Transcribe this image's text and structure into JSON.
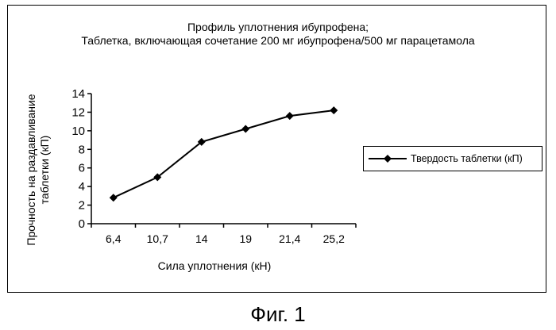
{
  "chart_data": {
    "type": "line",
    "title_lines": [
      "Профиль уплотнения ибупрофена;",
      "Таблетка, включающая сочетание 200 мг ибупрофена/500 мг парацетамола"
    ],
    "xlabel": "Сила уплотнения (кН)",
    "ylabel_lines": [
      "Прочность на раздавливание",
      "таблетки (кП)"
    ],
    "categories": [
      "6,4",
      "10,7",
      "14",
      "19",
      "21,4",
      "25,2"
    ],
    "series": [
      {
        "name": "Твердость таблетки (кП)",
        "values": [
          2.8,
          5.0,
          8.8,
          10.2,
          11.6,
          12.2
        ]
      }
    ],
    "ylim": [
      0,
      14
    ],
    "yticks": [
      "0",
      "2",
      "4",
      "6",
      "8",
      "10",
      "12",
      "14"
    ],
    "grid": false,
    "legend_position": "right",
    "marker": "diamond",
    "colors": {
      "line": "#000000"
    }
  },
  "caption": "Фиг. 1"
}
